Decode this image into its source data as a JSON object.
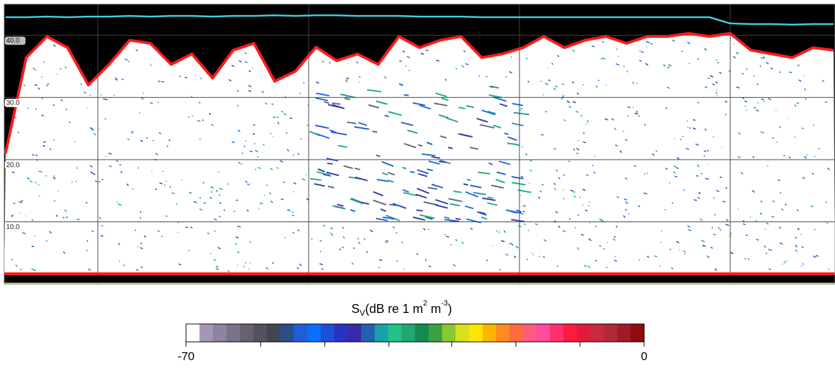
{
  "chart_data": {
    "type": "echogram",
    "ylim": [
      0,
      45
    ],
    "yticks": [
      {
        "value": 40,
        "label": "40.0"
      },
      {
        "value": 30,
        "label": "30.0"
      },
      {
        "value": 20,
        "label": "20.0"
      },
      {
        "value": 10,
        "label": "10.0"
      }
    ],
    "grid": true,
    "series": [
      {
        "color": "#3fd0e0",
        "values": [
          42.9,
          42.9,
          43.0,
          42.9,
          43.0,
          43.0,
          43.1,
          43.0,
          43.1,
          43.1,
          43.0,
          43.1,
          43.1,
          43.2,
          43.1,
          43.2,
          43.2,
          43.1,
          43.1,
          43.1,
          43.0,
          43.0,
          43.0,
          42.9,
          42.9,
          42.9,
          42.9,
          42.9,
          42.9,
          42.9,
          42.9,
          42.9,
          42.9,
          42.9,
          42.9,
          41.9,
          41.8,
          41.8,
          41.7,
          41.8,
          41.8
        ]
      },
      {
        "color": "#ff1a1a",
        "values": [
          21.0,
          36.4,
          39.8,
          38.0,
          32.0,
          35.3,
          39.2,
          38.7,
          35.3,
          37.0,
          33.1,
          37.6,
          38.7,
          32.6,
          34.2,
          38.1,
          35.9,
          37.0,
          35.3,
          39.8,
          38.0,
          39.2,
          39.8,
          36.4,
          37.0,
          38.0,
          39.8,
          38.0,
          39.2,
          39.8,
          38.7,
          39.8,
          39.8,
          40.3,
          39.8,
          40.3,
          37.6,
          37.0,
          36.4,
          38.0,
          37.6
        ]
      }
    ],
    "colorbar": {
      "title_parts": [
        "S",
        "V",
        "(dB re 1 m",
        "2",
        " m",
        "-3",
        ")"
      ],
      "lim": [
        -70,
        0
      ],
      "ticks": [
        -70,
        0
      ],
      "minor_ticks": [
        -58.6,
        -48.8,
        -39,
        -29.4,
        -19.6,
        -9.8
      ],
      "colors": [
        "#ffffff",
        "#a396b6",
        "#8f849e",
        "#7a7288",
        "#676070",
        "#54525c",
        "#424652",
        "#2b4d8a",
        "#1f5ed8",
        "#0a6dff",
        "#1e4fd8",
        "#2a33c0",
        "#3a2aa8",
        "#2360b0",
        "#1aa0a8",
        "#22c08a",
        "#1fa870",
        "#138a50",
        "#3aa040",
        "#8ac630",
        "#d4e020",
        "#ffe600",
        "#ffb400",
        "#ff8a20",
        "#ff6a40",
        "#ff5a80",
        "#ff4aa0",
        "#ff3070",
        "#ff1a40",
        "#e01a3a",
        "#c82a40",
        "#b02a3a",
        "#a01a28",
        "#900a10"
      ]
    }
  }
}
